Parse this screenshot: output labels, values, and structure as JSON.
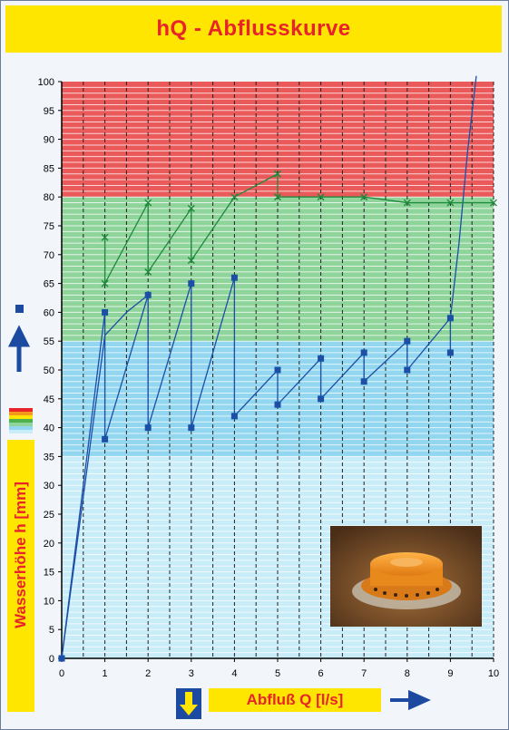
{
  "title": "hQ - Abflusskurve",
  "chart_data": {
    "type": "line",
    "title": "hQ - Abflusskurve",
    "xlabel": "Abfluß Q [l/s]",
    "ylabel": "Wasserhöhe h [mm]",
    "xlim": [
      0,
      10
    ],
    "ylim": [
      0,
      100
    ],
    "x_ticks": [
      "0",
      "1",
      "2",
      "3",
      "4",
      "5",
      "6",
      "7",
      "8",
      "9",
      "10"
    ],
    "y_ticks": [
      "0",
      "5",
      "10",
      "15",
      "20",
      "25",
      "30",
      "35",
      "40",
      "45",
      "50",
      "55",
      "60",
      "65",
      "70",
      "75",
      "80",
      "85",
      "90",
      "95",
      "100"
    ],
    "bands": [
      {
        "from": 0,
        "to": 55,
        "color": "#c8ecf8"
      },
      {
        "from": 35,
        "to": 55,
        "color": "#92d6f0"
      },
      {
        "from": 55,
        "to": 80,
        "color": "#8fd49a"
      },
      {
        "from": 80,
        "to": 100,
        "color": "#ea5a5a"
      }
    ],
    "grid": true,
    "series": [
      {
        "color": "#1c4fa6",
        "marker": "square",
        "x": [
          0,
          1,
          1,
          2,
          2,
          3,
          3,
          4,
          4,
          5,
          5,
          6,
          6,
          7,
          7,
          8,
          8,
          9,
          9
        ],
        "y": [
          0,
          60,
          38,
          63,
          40,
          65,
          40,
          66,
          42,
          50,
          44,
          52,
          45,
          53,
          48,
          55,
          50,
          59,
          53
        ]
      },
      {
        "color": "#1c4fa6",
        "marker": "none",
        "x": [
          0,
          0.5,
          1,
          1.5,
          2
        ],
        "y": [
          0,
          28,
          56,
          60,
          63
        ]
      },
      {
        "color": "#1c4fa6",
        "marker": "none",
        "x": [
          9,
          9.2,
          9.4,
          9.6
        ],
        "y": [
          59,
          72,
          88,
          101
        ]
      },
      {
        "color": "#1e8a3c",
        "marker": "x",
        "x": [
          1,
          1,
          2,
          2,
          3,
          3,
          4,
          5,
          5,
          6,
          7,
          8,
          9,
          10
        ],
        "y": [
          73,
          65,
          79,
          67,
          78,
          69,
          80,
          84,
          80,
          80,
          80,
          79,
          79,
          79
        ]
      }
    ]
  },
  "photo": {
    "icon": "orange-flow-regulator-photo"
  }
}
